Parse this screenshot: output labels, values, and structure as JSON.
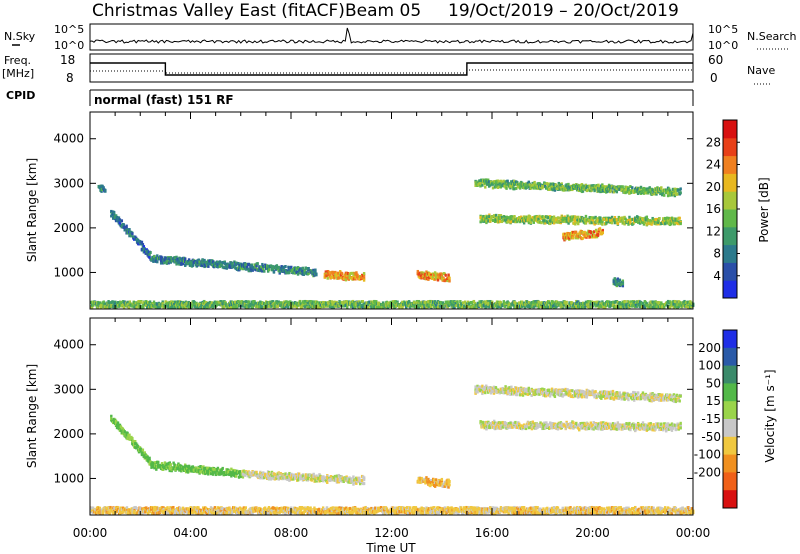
{
  "header": {
    "site": "Christmas Valley East (fitACF)",
    "beam": "Beam 05",
    "dates": "19/Oct/2019 – 20/Oct/2019"
  },
  "noise_panel": {
    "left_label": "N.Sky",
    "right_label": "N.Search",
    "left_ticks": [
      "10^5",
      "10^0"
    ],
    "right_ticks": [
      "10^5",
      "10^0"
    ]
  },
  "freq_panel": {
    "left_label_line1": "Freq.",
    "left_label_line2": "[MHz]",
    "right_label": "Nave",
    "left_ticks": [
      "18",
      "8"
    ],
    "right_ticks": [
      "60",
      "0"
    ]
  },
  "cpid": {
    "label": "CPID",
    "mode": "normal (fast) 151 RF"
  },
  "colors": {
    "power_scale": [
      "#1f2ee6",
      "#2a4fa8",
      "#2c7a8c",
      "#3d9a6a",
      "#60b84a",
      "#a8c83a",
      "#e8b820",
      "#f08020",
      "#e84018",
      "#d81010"
    ],
    "velocity_scale": [
      "#d81010",
      "#f06018",
      "#f09020",
      "#f0c840",
      "#c8c8c8",
      "#9ad44a",
      "#52b848",
      "#3a8a6a",
      "#2a5aa8",
      "#1f2ee6"
    ]
  },
  "chart_data": [
    {
      "type": "heatmap",
      "title": "Power",
      "xlabel": "",
      "ylabel": "Slant Range [km]",
      "x_ticks": [
        "00:00",
        "04:00",
        "08:00",
        "12:00",
        "16:00",
        "20:00",
        "00:00"
      ],
      "y_ticks": [
        "1000",
        "2000",
        "3000",
        "4000"
      ],
      "ylim": [
        180,
        4600
      ],
      "colorbar": {
        "label": "Power [dB]",
        "ticks": [
          "4",
          "8",
          "12",
          "16",
          "20",
          "24",
          "28"
        ],
        "range": [
          0,
          32
        ]
      },
      "scatter_bands": [
        {
          "t_start": 0.3,
          "t_end": 0.6,
          "range_start": 2900,
          "range_end": 2850,
          "power": 10
        },
        {
          "t_start": 0.8,
          "t_end": 2.4,
          "range_start": 2350,
          "range_end": 1350,
          "power": 7
        },
        {
          "t_start": 2.4,
          "t_end": 9.0,
          "range_start": 1300,
          "range_end": 1000,
          "power": 9
        },
        {
          "t_start": 9.3,
          "t_end": 10.9,
          "range_start": 950,
          "range_end": 900,
          "power": 22
        },
        {
          "t_start": 13.0,
          "t_end": 14.3,
          "range_start": 950,
          "range_end": 870,
          "power": 22
        },
        {
          "t_start": 15.3,
          "t_end": 23.5,
          "range_start": 3000,
          "range_end": 2800,
          "power": 14
        },
        {
          "t_start": 15.5,
          "t_end": 23.5,
          "range_start": 2200,
          "range_end": 2150,
          "power": 16
        },
        {
          "t_start": 18.8,
          "t_end": 20.4,
          "range_start": 1800,
          "range_end": 1900,
          "power": 22
        },
        {
          "t_start": 20.8,
          "t_end": 21.2,
          "range_start": 800,
          "range_end": 750,
          "power": 10
        },
        {
          "t_start": 0.0,
          "t_end": 24.0,
          "range_start": 280,
          "range_end": 280,
          "power": 14
        }
      ]
    },
    {
      "type": "heatmap",
      "title": "Velocity",
      "xlabel": "Time UT",
      "ylabel": "Slant Range [km]",
      "x_ticks": [
        "00:00",
        "04:00",
        "08:00",
        "12:00",
        "16:00",
        "20:00",
        "00:00"
      ],
      "y_ticks": [
        "1000",
        "2000",
        "3000",
        "4000"
      ],
      "ylim": [
        180,
        4600
      ],
      "colorbar": {
        "label": "Velocity [m s⁻¹]",
        "ticks": [
          "200",
          "100",
          "50",
          "15",
          "-15",
          "-50",
          "-100",
          "-200"
        ],
        "range": [
          -250,
          250
        ]
      },
      "scatter_bands": [
        {
          "t_start": 0.8,
          "t_end": 2.4,
          "range_start": 2350,
          "range_end": 1350,
          "velocity": 60
        },
        {
          "t_start": 2.4,
          "t_end": 6.0,
          "range_start": 1300,
          "range_end": 1100,
          "velocity": 60
        },
        {
          "t_start": 6.0,
          "t_end": 10.9,
          "range_start": 1100,
          "range_end": 950,
          "velocity": 0
        },
        {
          "t_start": 13.0,
          "t_end": 14.3,
          "range_start": 950,
          "range_end": 870,
          "velocity": -40
        },
        {
          "t_start": 15.3,
          "t_end": 23.5,
          "range_start": 3000,
          "range_end": 2800,
          "velocity": 0
        },
        {
          "t_start": 15.5,
          "t_end": 23.5,
          "range_start": 2200,
          "range_end": 2150,
          "velocity": 0
        },
        {
          "t_start": 0.0,
          "t_end": 24.0,
          "range_start": 280,
          "range_end": 280,
          "velocity": -30
        }
      ]
    }
  ]
}
